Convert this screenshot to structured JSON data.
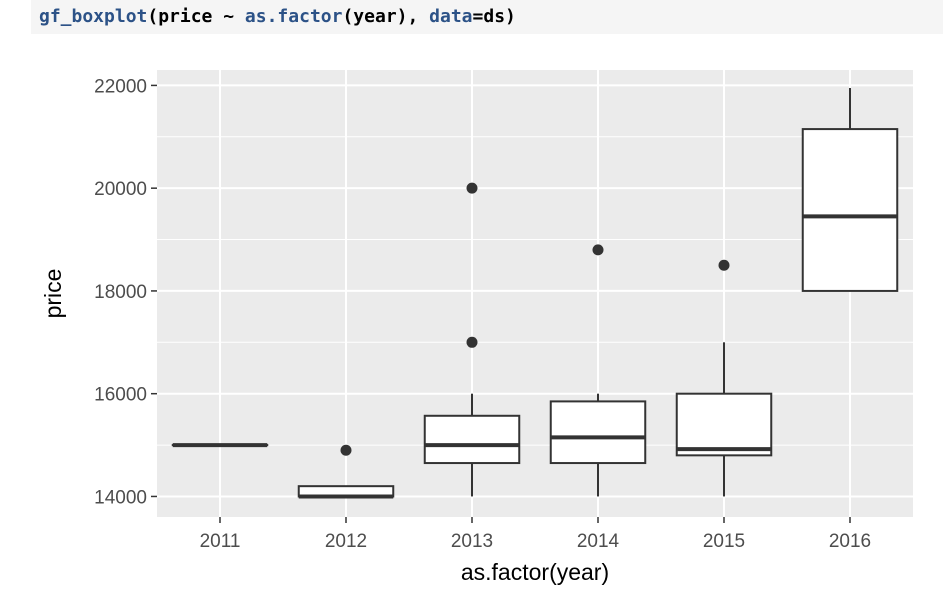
{
  "code": {
    "fn": "gf_boxplot",
    "open": "(price ~ ",
    "fn2": "as.factor",
    "mid": "(year), ",
    "arg": "data",
    "rest": "=ds)"
  },
  "chart_data": {
    "type": "boxplot",
    "xlabel": "as.factor(year)",
    "ylabel": "price",
    "ylim": [
      13600,
      22300
    ],
    "yticks": [
      14000,
      16000,
      18000,
      20000,
      22000
    ],
    "categories": [
      "2011",
      "2012",
      "2013",
      "2014",
      "2015",
      "2016"
    ],
    "boxes": [
      {
        "category": "2011",
        "whisker_low": 15000,
        "q1": 15000,
        "median": 15000,
        "q3": 15000,
        "whisker_high": 15000,
        "outliers": []
      },
      {
        "category": "2012",
        "whisker_low": 14000,
        "q1": 14000,
        "median": 14000,
        "q3": 14200,
        "whisker_high": 14200,
        "outliers": [
          14900
        ]
      },
      {
        "category": "2013",
        "whisker_low": 14000,
        "q1": 14650,
        "median": 15000,
        "q3": 15570,
        "whisker_high": 16000,
        "outliers": [
          17000,
          20000
        ]
      },
      {
        "category": "2014",
        "whisker_low": 14000,
        "q1": 14650,
        "median": 15150,
        "q3": 15850,
        "whisker_high": 16000,
        "outliers": [
          18800
        ]
      },
      {
        "category": "2015",
        "whisker_low": 14000,
        "q1": 14800,
        "median": 14920,
        "q3": 16000,
        "whisker_high": 17000,
        "outliers": [
          18500
        ]
      },
      {
        "category": "2016",
        "whisker_low": 18000,
        "q1": 18000,
        "median": 19450,
        "q3": 21150,
        "whisker_high": 21950,
        "outliers": []
      }
    ],
    "panel_background": "#ebebeb",
    "grid": true,
    "grid_color": "#ffffff",
    "box_fill": "#ffffff",
    "box_stroke": "#333333"
  }
}
